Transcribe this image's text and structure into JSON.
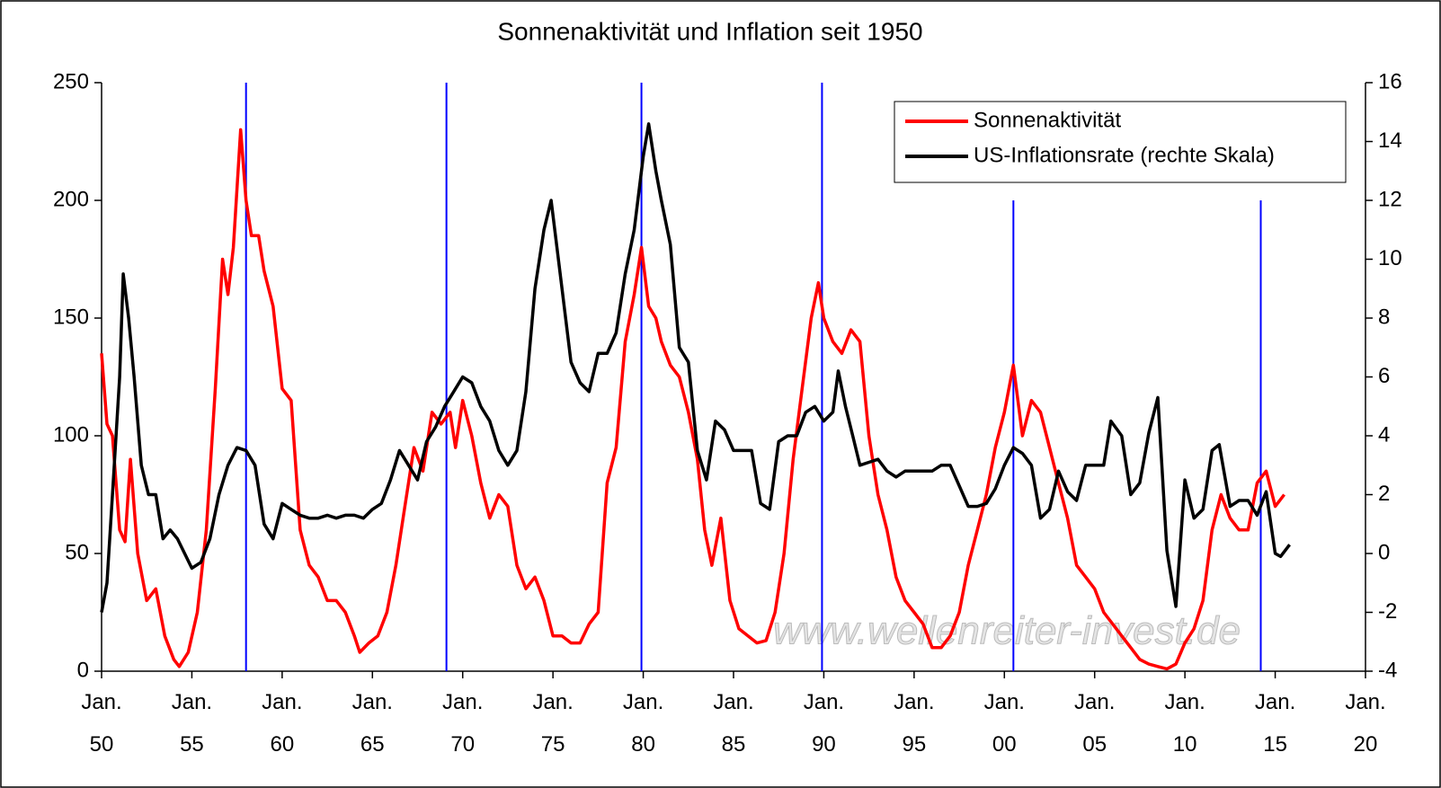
{
  "chart_data": {
    "type": "line",
    "title": "Sonnenaktivität und Inflation seit 1950",
    "watermark": "www.wellenreiter-invest.de",
    "legend": "upper right",
    "xlim": [
      1950,
      2020
    ],
    "xticks": [
      {
        "value": 1950,
        "label": "Jan. 50"
      },
      {
        "value": 1955,
        "label": "Jan. 55"
      },
      {
        "value": 1960,
        "label": "Jan. 60"
      },
      {
        "value": 1965,
        "label": "Jan. 65"
      },
      {
        "value": 1970,
        "label": "Jan. 70"
      },
      {
        "value": 1975,
        "label": "Jan. 75"
      },
      {
        "value": 1980,
        "label": "Jan. 80"
      },
      {
        "value": 1985,
        "label": "Jan. 85"
      },
      {
        "value": 1990,
        "label": "Jan. 90"
      },
      {
        "value": 1995,
        "label": "Jan. 95"
      },
      {
        "value": 2000,
        "label": "Jan. 00"
      },
      {
        "value": 2005,
        "label": "Jan. 05"
      },
      {
        "value": 2010,
        "label": "Jan. 10"
      },
      {
        "value": 2015,
        "label": "Jan. 15"
      },
      {
        "value": 2020,
        "label": "Jan. 20"
      }
    ],
    "ylim": [
      0,
      250
    ],
    "yticks": [
      0,
      50,
      100,
      150,
      200,
      250
    ],
    "y2lim": [
      -4,
      16
    ],
    "y2ticks": [
      -4,
      -2,
      0,
      2,
      4,
      6,
      8,
      10,
      12,
      14,
      16
    ],
    "reference_lines": {
      "color": "#0000ff",
      "x": [
        1958,
        1969.1,
        1979.9,
        1989.9,
        2000.5,
        2014.2
      ],
      "top": [
        250,
        250,
        250,
        250,
        200,
        200
      ]
    },
    "series": [
      {
        "name": "Sonnenaktivität",
        "color": "#ff0000",
        "x": [
          1950,
          1950.3,
          1950.6,
          1951,
          1951.3,
          1951.6,
          1952,
          1952.5,
          1953,
          1953.5,
          1954,
          1954.3,
          1954.8,
          1955.3,
          1955.8,
          1956.3,
          1956.7,
          1957,
          1957.3,
          1957.7,
          1958,
          1958.3,
          1958.7,
          1959,
          1959.5,
          1960,
          1960.5,
          1961,
          1961.5,
          1962,
          1962.5,
          1963,
          1963.5,
          1964,
          1964.3,
          1964.8,
          1965.3,
          1965.8,
          1966.3,
          1966.8,
          1967.3,
          1967.8,
          1968.3,
          1968.8,
          1969.3,
          1969.6,
          1970,
          1970.5,
          1971,
          1971.5,
          1972,
          1972.5,
          1973,
          1973.5,
          1974,
          1974.5,
          1975,
          1975.5,
          1976,
          1976.5,
          1977,
          1977.5,
          1978,
          1978.5,
          1979,
          1979.5,
          1979.9,
          1980.3,
          1980.7,
          1981,
          1981.5,
          1982,
          1982.5,
          1983,
          1983.4,
          1983.8,
          1984.3,
          1984.8,
          1985.3,
          1985.8,
          1986.3,
          1986.8,
          1987.3,
          1987.8,
          1988.3,
          1988.8,
          1989.3,
          1989.7,
          1990,
          1990.5,
          1991,
          1991.5,
          1992,
          1992.5,
          1993,
          1993.5,
          1994,
          1994.5,
          1995,
          1995.5,
          1996,
          1996.5,
          1997,
          1997.5,
          1998,
          1998.5,
          1999,
          1999.5,
          2000,
          2000.5,
          2001,
          2001.5,
          2002,
          2002.5,
          2003,
          2003.5,
          2004,
          2004.5,
          2005,
          2005.5,
          2006,
          2006.5,
          2007,
          2007.5,
          2008,
          2008.5,
          2009,
          2009.5,
          2010,
          2010.5,
          2011,
          2011.5,
          2012,
          2012.5,
          2013,
          2013.5,
          2014,
          2014.5,
          2015,
          2015.5
        ],
        "values": [
          135,
          105,
          100,
          60,
          55,
          90,
          50,
          30,
          35,
          15,
          5,
          2,
          8,
          25,
          60,
          120,
          175,
          160,
          180,
          230,
          200,
          185,
          185,
          170,
          155,
          120,
          115,
          60,
          45,
          40,
          30,
          30,
          25,
          15,
          8,
          12,
          15,
          25,
          45,
          70,
          95,
          85,
          110,
          105,
          110,
          95,
          115,
          100,
          80,
          65,
          75,
          70,
          45,
          35,
          40,
          30,
          15,
          15,
          12,
          12,
          20,
          25,
          80,
          95,
          140,
          160,
          180,
          155,
          150,
          140,
          130,
          125,
          110,
          90,
          60,
          45,
          65,
          30,
          18,
          15,
          12,
          13,
          25,
          50,
          90,
          120,
          150,
          165,
          150,
          140,
          135,
          145,
          140,
          100,
          75,
          60,
          40,
          30,
          25,
          20,
          10,
          10,
          15,
          25,
          45,
          60,
          75,
          95,
          110,
          130,
          100,
          115,
          110,
          95,
          80,
          65,
          45,
          40,
          35,
          25,
          20,
          15,
          10,
          5,
          3,
          2,
          1,
          3,
          12,
          18,
          30,
          60,
          75,
          65,
          60,
          60,
          80,
          85,
          70,
          75
        ]
      },
      {
        "name": "US-Inflationsrate (rechte Skala)",
        "color": "#000000",
        "axis": "y2",
        "x": [
          1950,
          1950.3,
          1950.6,
          1951,
          1951.2,
          1951.5,
          1951.8,
          1952.2,
          1952.6,
          1953,
          1953.4,
          1953.8,
          1954.2,
          1954.6,
          1955,
          1955.5,
          1956,
          1956.5,
          1957,
          1957.5,
          1958,
          1958.5,
          1959,
          1959.5,
          1960,
          1960.5,
          1961,
          1961.5,
          1962,
          1962.5,
          1963,
          1963.5,
          1964,
          1964.5,
          1965,
          1965.5,
          1966,
          1966.5,
          1967,
          1967.5,
          1968,
          1968.5,
          1969,
          1969.5,
          1970,
          1970.5,
          1971,
          1971.5,
          1972,
          1972.5,
          1973,
          1973.5,
          1974,
          1974.5,
          1974.9,
          1975.5,
          1976,
          1976.5,
          1977,
          1977.5,
          1978,
          1978.5,
          1979,
          1979.5,
          1980,
          1980.3,
          1980.7,
          1981,
          1981.5,
          1982,
          1982.5,
          1983,
          1983.5,
          1984,
          1984.5,
          1985,
          1985.5,
          1986,
          1986.5,
          1987,
          1987.5,
          1988,
          1988.5,
          1989,
          1989.5,
          1990,
          1990.5,
          1990.8,
          1991.2,
          1991.6,
          1992,
          1992.5,
          1993,
          1993.5,
          1994,
          1994.5,
          1995,
          1995.5,
          1996,
          1996.5,
          1997,
          1997.5,
          1998,
          1998.5,
          1999,
          1999.5,
          2000,
          2000.5,
          2001,
          2001.5,
          2002,
          2002.5,
          2003,
          2003.5,
          2004,
          2004.5,
          2005,
          2005.5,
          2005.9,
          2006.5,
          2007,
          2007.5,
          2008,
          2008.5,
          2009,
          2009.5,
          2010,
          2010.5,
          2011,
          2011.5,
          2011.9,
          2012.5,
          2013,
          2013.5,
          2014,
          2014.5,
          2015,
          2015.3,
          2015.8
        ],
        "values": [
          -2,
          -1,
          2,
          6,
          9.5,
          8,
          6,
          3,
          2,
          2,
          0.5,
          0.8,
          0.5,
          0,
          -0.5,
          -0.3,
          0.5,
          2,
          3,
          3.6,
          3.5,
          3,
          1,
          0.5,
          1.7,
          1.5,
          1.3,
          1.2,
          1.2,
          1.3,
          1.2,
          1.3,
          1.3,
          1.2,
          1.5,
          1.7,
          2.5,
          3.5,
          3,
          2.5,
          3.8,
          4.3,
          5,
          5.5,
          6,
          5.8,
          5,
          4.5,
          3.5,
          3,
          3.5,
          5.5,
          9,
          11,
          12,
          9,
          6.5,
          5.8,
          5.5,
          6.8,
          6.8,
          7.5,
          9.5,
          11,
          13.5,
          14.6,
          13,
          12,
          10.5,
          7,
          6.5,
          3.5,
          2.5,
          4.5,
          4.2,
          3.5,
          3.5,
          3.5,
          1.7,
          1.5,
          3.8,
          4,
          4,
          4.8,
          5,
          4.5,
          4.8,
          6.2,
          5,
          4,
          3,
          3.1,
          3.2,
          2.8,
          2.6,
          2.8,
          2.8,
          2.8,
          2.8,
          3,
          3,
          2.3,
          1.6,
          1.6,
          1.7,
          2.2,
          3,
          3.6,
          3.4,
          3,
          1.2,
          1.5,
          2.8,
          2.1,
          1.8,
          3,
          3,
          3,
          4.5,
          4,
          2,
          2.4,
          4.1,
          5.3,
          0.1,
          -1.8,
          2.5,
          1.2,
          1.5,
          3.5,
          3.7,
          1.6,
          1.8,
          1.8,
          1.3,
          2.1,
          0,
          -0.1,
          0.3
        ]
      }
    ]
  }
}
